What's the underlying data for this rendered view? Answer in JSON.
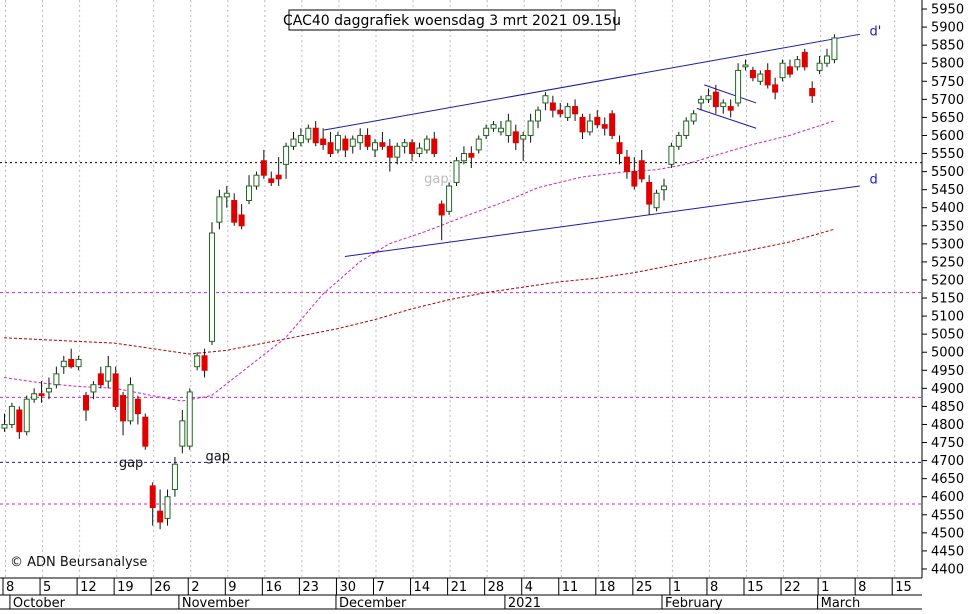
{
  "chart_data": {
    "type": "candlestick",
    "title": "CAC40 daggrafiek woensdag 3 mrt 2021 09.15u",
    "copyright": "© ADN Beursanalyse",
    "colors": {
      "up": "#ffffff",
      "down": "#e00000",
      "wick": "#111111",
      "upOutline": "#1d6a1d",
      "trendline": "#1a1aa8",
      "ma_short": "#cc22cc",
      "ma_long": "#b00000",
      "hline_magenta": "#cc22cc",
      "hline_navy": "#1a1a8a",
      "hline_black": "#000000",
      "grid": "#bbbbbb",
      "label_blue": "#1a1acc"
    },
    "y_axis": {
      "side": "right",
      "ylim": [
        4375,
        5975
      ],
      "ticks": [
        4400,
        4450,
        4500,
        4550,
        4600,
        4650,
        4700,
        4750,
        4800,
        4850,
        4900,
        4950,
        5000,
        5050,
        5100,
        5150,
        5200,
        5250,
        5300,
        5350,
        5400,
        5450,
        5500,
        5550,
        5600,
        5650,
        5700,
        5750,
        5800,
        5850,
        5900,
        5950
      ]
    },
    "x_axis": {
      "day_ticks": [
        {
          "label": "8",
          "d": 0
        },
        {
          "label": "5",
          "d": 5
        },
        {
          "label": "12",
          "d": 10
        },
        {
          "label": "19",
          "d": 15
        },
        {
          "label": "26",
          "d": 20
        },
        {
          "label": "2",
          "d": 25
        },
        {
          "label": "9",
          "d": 30
        },
        {
          "label": "16",
          "d": 35
        },
        {
          "label": "23",
          "d": 40
        },
        {
          "label": "30",
          "d": 45
        },
        {
          "label": "7",
          "d": 50
        },
        {
          "label": "14",
          "d": 55
        },
        {
          "label": "21",
          "d": 60
        },
        {
          "label": "28",
          "d": 65
        },
        {
          "label": "4",
          "d": 70
        },
        {
          "label": "11",
          "d": 75
        },
        {
          "label": "18",
          "d": 80
        },
        {
          "label": "25",
          "d": 85
        },
        {
          "label": "1",
          "d": 90
        },
        {
          "label": "8",
          "d": 95
        },
        {
          "label": "15",
          "d": 100
        },
        {
          "label": "22",
          "d": 105
        },
        {
          "label": "1",
          "d": 110
        },
        {
          "label": "8",
          "d": 115
        },
        {
          "label": "15",
          "d": 120
        }
      ],
      "months": [
        {
          "label": "October",
          "d": 0.8
        },
        {
          "label": "November",
          "d": 23.6
        },
        {
          "label": "December",
          "d": 44.8
        },
        {
          "label": "2021",
          "d": 67.6
        },
        {
          "label": "February",
          "d": 88.8
        },
        {
          "label": "March",
          "d": 109.8
        }
      ],
      "month_seps": [
        0.8,
        23.6,
        44.8,
        67.6,
        88.8,
        109.8
      ]
    },
    "horizontal_lines": [
      {
        "y": 5525,
        "style": "dotted",
        "color": "hline_black"
      },
      {
        "y": 5165,
        "style": "dashed",
        "color": "hline_magenta"
      },
      {
        "y": 4875,
        "style": "dashed",
        "color": "hline_magenta"
      },
      {
        "y": 4695,
        "style": "dashed",
        "color": "hline_navy"
      },
      {
        "y": 4580,
        "style": "dashed",
        "color": "hline_magenta"
      }
    ],
    "trendlines": [
      {
        "d1": 43.2,
        "y1": 5615,
        "d2": 115.5,
        "y2": 5880
      },
      {
        "d1": 46,
        "y1": 5265,
        "d2": 115.5,
        "y2": 5460
      },
      {
        "d1": 94.5,
        "y1": 5740,
        "d2": 101.5,
        "y2": 5690
      },
      {
        "d1": 93.5,
        "y1": 5675,
        "d2": 101.5,
        "y2": 5620
      }
    ],
    "labels": [
      {
        "text": "gap",
        "d": 15.5,
        "y": 4682,
        "color": "#111111"
      },
      {
        "text": "gap",
        "d": 27.2,
        "y": 4700,
        "color": "#111111"
      },
      {
        "text": "gap",
        "d": 56.7,
        "y": 5468,
        "color": "#bbbbbb"
      },
      {
        "text": "d'",
        "d": 116.8,
        "y": 5877,
        "color": "label_blue"
      },
      {
        "text": "d",
        "d": 116.8,
        "y": 5467,
        "color": "label_blue"
      }
    ],
    "ma_short": {
      "color": "ma_short",
      "points": [
        [
          0,
          4930
        ],
        [
          5,
          4915
        ],
        [
          10,
          4905
        ],
        [
          15,
          4900
        ],
        [
          20,
          4880
        ],
        [
          24,
          4865
        ],
        [
          28,
          4880
        ],
        [
          33,
          4960
        ],
        [
          38,
          5040
        ],
        [
          43,
          5160
        ],
        [
          48,
          5250
        ],
        [
          52,
          5300
        ],
        [
          57,
          5335
        ],
        [
          62,
          5375
        ],
        [
          68,
          5420
        ],
        [
          72,
          5455
        ],
        [
          78,
          5485
        ],
        [
          84,
          5500
        ],
        [
          88,
          5505
        ],
        [
          92,
          5520
        ],
        [
          96,
          5545
        ],
        [
          101,
          5575
        ],
        [
          106,
          5600
        ],
        [
          112,
          5640
        ]
      ]
    },
    "ma_long": {
      "color": "ma_long",
      "points": [
        [
          0,
          5040
        ],
        [
          5,
          5035
        ],
        [
          10,
          5030
        ],
        [
          15,
          5025
        ],
        [
          20,
          5010
        ],
        [
          25,
          4995
        ],
        [
          30,
          5005
        ],
        [
          35,
          5025
        ],
        [
          40,
          5045
        ],
        [
          45,
          5065
        ],
        [
          50,
          5090
        ],
        [
          55,
          5120
        ],
        [
          60,
          5145
        ],
        [
          65,
          5165
        ],
        [
          70,
          5180
        ],
        [
          75,
          5195
        ],
        [
          80,
          5205
        ],
        [
          85,
          5220
        ],
        [
          90,
          5240
        ],
        [
          95,
          5260
        ],
        [
          100,
          5280
        ],
        [
          106,
          5305
        ],
        [
          112,
          5340
        ]
      ]
    },
    "candles": [
      {
        "d": 0,
        "o": 4790,
        "h": 4830,
        "l": 4780,
        "c": 4800
      },
      {
        "d": 1,
        "o": 4800,
        "h": 4860,
        "l": 4790,
        "c": 4850
      },
      {
        "d": 2,
        "o": 4840,
        "h": 4850,
        "l": 4760,
        "c": 4780
      },
      {
        "d": 3,
        "o": 4780,
        "h": 4880,
        "l": 4770,
        "c": 4870
      },
      {
        "d": 4,
        "o": 4870,
        "h": 4900,
        "l": 4860,
        "c": 4885
      },
      {
        "d": 5,
        "o": 4885,
        "h": 4920,
        "l": 4860,
        "c": 4880
      },
      {
        "d": 6,
        "o": 4890,
        "h": 4930,
        "l": 4870,
        "c": 4900
      },
      {
        "d": 7,
        "o": 4910,
        "h": 4960,
        "l": 4900,
        "c": 4940
      },
      {
        "d": 8,
        "o": 4960,
        "h": 4990,
        "l": 4940,
        "c": 4975
      },
      {
        "d": 9,
        "o": 4980,
        "h": 5010,
        "l": 4955,
        "c": 4960
      },
      {
        "d": 10,
        "o": 4960,
        "h": 4990,
        "l": 4950,
        "c": 4980
      },
      {
        "d": 11,
        "o": 4880,
        "h": 4890,
        "l": 4810,
        "c": 4840
      },
      {
        "d": 12,
        "o": 4890,
        "h": 4920,
        "l": 4870,
        "c": 4910
      },
      {
        "d": 13,
        "o": 4940,
        "h": 4960,
        "l": 4900,
        "c": 4910
      },
      {
        "d": 14,
        "o": 4920,
        "h": 4990,
        "l": 4900,
        "c": 4960
      },
      {
        "d": 15,
        "o": 4940,
        "h": 4960,
        "l": 4840,
        "c": 4850
      },
      {
        "d": 16,
        "o": 4880,
        "h": 4890,
        "l": 4770,
        "c": 4810
      },
      {
        "d": 17,
        "o": 4810,
        "h": 4930,
        "l": 4800,
        "c": 4910
      },
      {
        "d": 18,
        "o": 4870,
        "h": 4880,
        "l": 4800,
        "c": 4830
      },
      {
        "d": 19,
        "o": 4820,
        "h": 4830,
        "l": 4730,
        "c": 4740
      },
      {
        "d": 20,
        "o": 4630,
        "h": 4640,
        "l": 4520,
        "c": 4570
      },
      {
        "d": 21,
        "o": 4560,
        "h": 4620,
        "l": 4510,
        "c": 4530
      },
      {
        "d": 22,
        "o": 4540,
        "h": 4620,
        "l": 4520,
        "c": 4600
      },
      {
        "d": 23,
        "o": 4620,
        "h": 4710,
        "l": 4600,
        "c": 4690
      },
      {
        "d": 24,
        "o": 4740,
        "h": 4840,
        "l": 4720,
        "c": 4810
      },
      {
        "d": 25,
        "o": 4740,
        "h": 4900,
        "l": 4730,
        "c": 4890
      },
      {
        "d": 26,
        "o": 4960,
        "h": 5000,
        "l": 4950,
        "c": 4990
      },
      {
        "d": 27,
        "o": 4990,
        "h": 5010,
        "l": 4930,
        "c": 4950
      },
      {
        "d": 28,
        "o": 5030,
        "h": 5360,
        "l": 5020,
        "c": 5330
      },
      {
        "d": 29,
        "o": 5360,
        "h": 5450,
        "l": 5340,
        "c": 5430
      },
      {
        "d": 30,
        "o": 5430,
        "h": 5460,
        "l": 5400,
        "c": 5440
      },
      {
        "d": 31,
        "o": 5420,
        "h": 5440,
        "l": 5350,
        "c": 5360
      },
      {
        "d": 32,
        "o": 5380,
        "h": 5410,
        "l": 5340,
        "c": 5350
      },
      {
        "d": 33,
        "o": 5420,
        "h": 5490,
        "l": 5410,
        "c": 5460
      },
      {
        "d": 34,
        "o": 5460,
        "h": 5500,
        "l": 5450,
        "c": 5490
      },
      {
        "d": 35,
        "o": 5530,
        "h": 5560,
        "l": 5480,
        "c": 5490
      },
      {
        "d": 36,
        "o": 5480,
        "h": 5500,
        "l": 5460,
        "c": 5470
      },
      {
        "d": 37,
        "o": 5490,
        "h": 5540,
        "l": 5460,
        "c": 5480
      },
      {
        "d": 38,
        "o": 5520,
        "h": 5580,
        "l": 5480,
        "c": 5570
      },
      {
        "d": 39,
        "o": 5570,
        "h": 5610,
        "l": 5560,
        "c": 5590
      },
      {
        "d": 40,
        "o": 5580,
        "h": 5620,
        "l": 5570,
        "c": 5600
      },
      {
        "d": 41,
        "o": 5590,
        "h": 5630,
        "l": 5580,
        "c": 5620
      },
      {
        "d": 42,
        "o": 5620,
        "h": 5640,
        "l": 5570,
        "c": 5580
      },
      {
        "d": 43,
        "o": 5590,
        "h": 5620,
        "l": 5560,
        "c": 5575
      },
      {
        "d": 44,
        "o": 5580,
        "h": 5610,
        "l": 5540,
        "c": 5550
      },
      {
        "d": 45,
        "o": 5560,
        "h": 5610,
        "l": 5550,
        "c": 5600
      },
      {
        "d": 46,
        "o": 5590,
        "h": 5600,
        "l": 5540,
        "c": 5560
      },
      {
        "d": 47,
        "o": 5570,
        "h": 5600,
        "l": 5550,
        "c": 5590
      },
      {
        "d": 48,
        "o": 5580,
        "h": 5620,
        "l": 5560,
        "c": 5600
      },
      {
        "d": 49,
        "o": 5600,
        "h": 5620,
        "l": 5560,
        "c": 5570
      },
      {
        "d": 50,
        "o": 5560,
        "h": 5590,
        "l": 5540,
        "c": 5580
      },
      {
        "d": 51,
        "o": 5580,
        "h": 5610,
        "l": 5560,
        "c": 5570
      },
      {
        "d": 52,
        "o": 5570,
        "h": 5590,
        "l": 5500,
        "c": 5540
      },
      {
        "d": 53,
        "o": 5540,
        "h": 5580,
        "l": 5520,
        "c": 5570
      },
      {
        "d": 54,
        "o": 5570,
        "h": 5590,
        "l": 5550,
        "c": 5580
      },
      {
        "d": 55,
        "o": 5580,
        "h": 5590,
        "l": 5530,
        "c": 5550
      },
      {
        "d": 56,
        "o": 5550,
        "h": 5580,
        "l": 5540,
        "c": 5565
      },
      {
        "d": 57,
        "o": 5560,
        "h": 5600,
        "l": 5550,
        "c": 5590
      },
      {
        "d": 58,
        "o": 5590,
        "h": 5610,
        "l": 5540,
        "c": 5550
      },
      {
        "d": 59,
        "o": 5410,
        "h": 5420,
        "l": 5310,
        "c": 5380
      },
      {
        "d": 60,
        "o": 5390,
        "h": 5470,
        "l": 5380,
        "c": 5460
      },
      {
        "d": 61,
        "o": 5470,
        "h": 5540,
        "l": 5460,
        "c": 5530
      },
      {
        "d": 62,
        "o": 5530,
        "h": 5570,
        "l": 5520,
        "c": 5550
      },
      {
        "d": 63,
        "o": 5550,
        "h": 5570,
        "l": 5510,
        "c": 5540
      },
      {
        "d": 64,
        "o": 5560,
        "h": 5600,
        "l": 5550,
        "c": 5590
      },
      {
        "d": 65,
        "o": 5600,
        "h": 5630,
        "l": 5590,
        "c": 5620
      },
      {
        "d": 66,
        "o": 5620,
        "h": 5640,
        "l": 5610,
        "c": 5630
      },
      {
        "d": 67,
        "o": 5610,
        "h": 5640,
        "l": 5600,
        "c": 5620
      },
      {
        "d": 68,
        "o": 5600,
        "h": 5660,
        "l": 5580,
        "c": 5640
      },
      {
        "d": 69,
        "o": 5610,
        "h": 5630,
        "l": 5560,
        "c": 5580
      },
      {
        "d": 70,
        "o": 5590,
        "h": 5610,
        "l": 5530,
        "c": 5600
      },
      {
        "d": 71,
        "o": 5600,
        "h": 5660,
        "l": 5580,
        "c": 5640
      },
      {
        "d": 72,
        "o": 5640,
        "h": 5680,
        "l": 5620,
        "c": 5670
      },
      {
        "d": 73,
        "o": 5690,
        "h": 5720,
        "l": 5670,
        "c": 5710
      },
      {
        "d": 74,
        "o": 5690,
        "h": 5710,
        "l": 5650,
        "c": 5670
      },
      {
        "d": 75,
        "o": 5670,
        "h": 5690,
        "l": 5650,
        "c": 5660
      },
      {
        "d": 76,
        "o": 5650,
        "h": 5690,
        "l": 5640,
        "c": 5680
      },
      {
        "d": 77,
        "o": 5680,
        "h": 5700,
        "l": 5640,
        "c": 5660
      },
      {
        "d": 78,
        "o": 5650,
        "h": 5660,
        "l": 5590,
        "c": 5610
      },
      {
        "d": 79,
        "o": 5610,
        "h": 5660,
        "l": 5600,
        "c": 5640
      },
      {
        "d": 80,
        "o": 5650,
        "h": 5670,
        "l": 5620,
        "c": 5630
      },
      {
        "d": 81,
        "o": 5630,
        "h": 5650,
        "l": 5600,
        "c": 5620
      },
      {
        "d": 82,
        "o": 5660,
        "h": 5670,
        "l": 5590,
        "c": 5600
      },
      {
        "d": 83,
        "o": 5580,
        "h": 5600,
        "l": 5520,
        "c": 5550
      },
      {
        "d": 84,
        "o": 5540,
        "h": 5560,
        "l": 5480,
        "c": 5500
      },
      {
        "d": 85,
        "o": 5500,
        "h": 5540,
        "l": 5450,
        "c": 5460
      },
      {
        "d": 86,
        "o": 5530,
        "h": 5560,
        "l": 5470,
        "c": 5480
      },
      {
        "d": 87,
        "o": 5470,
        "h": 5490,
        "l": 5380,
        "c": 5410
      },
      {
        "d": 88,
        "o": 5400,
        "h": 5450,
        "l": 5390,
        "c": 5440
      },
      {
        "d": 89,
        "o": 5450,
        "h": 5480,
        "l": 5420,
        "c": 5460
      },
      {
        "d": 90,
        "o": 5520,
        "h": 5580,
        "l": 5510,
        "c": 5570
      },
      {
        "d": 91,
        "o": 5570,
        "h": 5610,
        "l": 5560,
        "c": 5600
      },
      {
        "d": 92,
        "o": 5600,
        "h": 5650,
        "l": 5590,
        "c": 5640
      },
      {
        "d": 93,
        "o": 5640,
        "h": 5670,
        "l": 5630,
        "c": 5660
      },
      {
        "d": 94,
        "o": 5690,
        "h": 5710,
        "l": 5670,
        "c": 5700
      },
      {
        "d": 95,
        "o": 5700,
        "h": 5730,
        "l": 5690,
        "c": 5710
      },
      {
        "d": 96,
        "o": 5720,
        "h": 5740,
        "l": 5660,
        "c": 5680
      },
      {
        "d": 97,
        "o": 5680,
        "h": 5700,
        "l": 5660,
        "c": 5690
      },
      {
        "d": 98,
        "o": 5680,
        "h": 5700,
        "l": 5650,
        "c": 5670
      },
      {
        "d": 99,
        "o": 5690,
        "h": 5800,
        "l": 5680,
        "c": 5780
      },
      {
        "d": 100,
        "o": 5790,
        "h": 5810,
        "l": 5780,
        "c": 5795
      },
      {
        "d": 101,
        "o": 5780,
        "h": 5790,
        "l": 5750,
        "c": 5760
      },
      {
        "d": 102,
        "o": 5750,
        "h": 5780,
        "l": 5740,
        "c": 5770
      },
      {
        "d": 103,
        "o": 5780,
        "h": 5800,
        "l": 5730,
        "c": 5740
      },
      {
        "d": 104,
        "o": 5740,
        "h": 5760,
        "l": 5700,
        "c": 5720
      },
      {
        "d": 105,
        "o": 5760,
        "h": 5810,
        "l": 5750,
        "c": 5800
      },
      {
        "d": 106,
        "o": 5790,
        "h": 5810,
        "l": 5760,
        "c": 5770
      },
      {
        "d": 107,
        "o": 5790,
        "h": 5820,
        "l": 5780,
        "c": 5810
      },
      {
        "d": 108,
        "o": 5830,
        "h": 5840,
        "l": 5780,
        "c": 5790
      },
      {
        "d": 109,
        "o": 5730,
        "h": 5750,
        "l": 5690,
        "c": 5710
      },
      {
        "d": 110,
        "o": 5780,
        "h": 5820,
        "l": 5770,
        "c": 5800
      },
      {
        "d": 111,
        "o": 5800,
        "h": 5840,
        "l": 5790,
        "c": 5820
      },
      {
        "d": 112,
        "o": 5810,
        "h": 5880,
        "l": 5800,
        "c": 5870
      }
    ]
  }
}
